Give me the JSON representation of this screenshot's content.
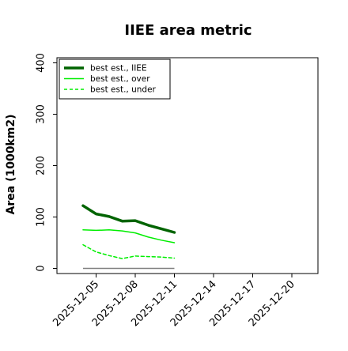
{
  "chart_data": {
    "type": "line",
    "title": "IIEE area metric",
    "xlabel": "",
    "ylabel": "Area (1000km2)",
    "x_ticks": [
      "2025-12-05",
      "2025-12-08",
      "2025-12-11",
      "2025-12-14",
      "2025-12-17",
      "2025-12-20"
    ],
    "x_range": [
      "2025-12-02",
      "2025-12-22"
    ],
    "y_ticks": [
      0,
      100,
      200,
      300,
      400
    ],
    "ylim": [
      -10,
      410
    ],
    "grid": false,
    "legend_position": "top-left",
    "x": [
      "2025-12-04",
      "2025-12-05",
      "2025-12-06",
      "2025-12-07",
      "2025-12-08",
      "2025-12-09",
      "2025-12-10",
      "2025-12-11"
    ],
    "series": [
      {
        "name": "best est., IIEE",
        "color": "#006400",
        "style": "solid-thick",
        "values": [
          122,
          106,
          101,
          92,
          93,
          84,
          77,
          70
        ]
      },
      {
        "name": "best est., over",
        "color": "#00ee00",
        "style": "solid",
        "values": [
          75,
          74,
          75,
          73,
          69,
          61,
          55,
          50
        ]
      },
      {
        "name": "best est., under",
        "color": "#00ee00",
        "style": "dashed",
        "values": [
          46,
          32,
          25,
          19,
          24,
          23,
          22,
          20
        ]
      }
    ],
    "baseline": {
      "y": 0,
      "x_start": "2025-12-04",
      "x_end": "2025-12-11",
      "color": "#808080"
    }
  }
}
